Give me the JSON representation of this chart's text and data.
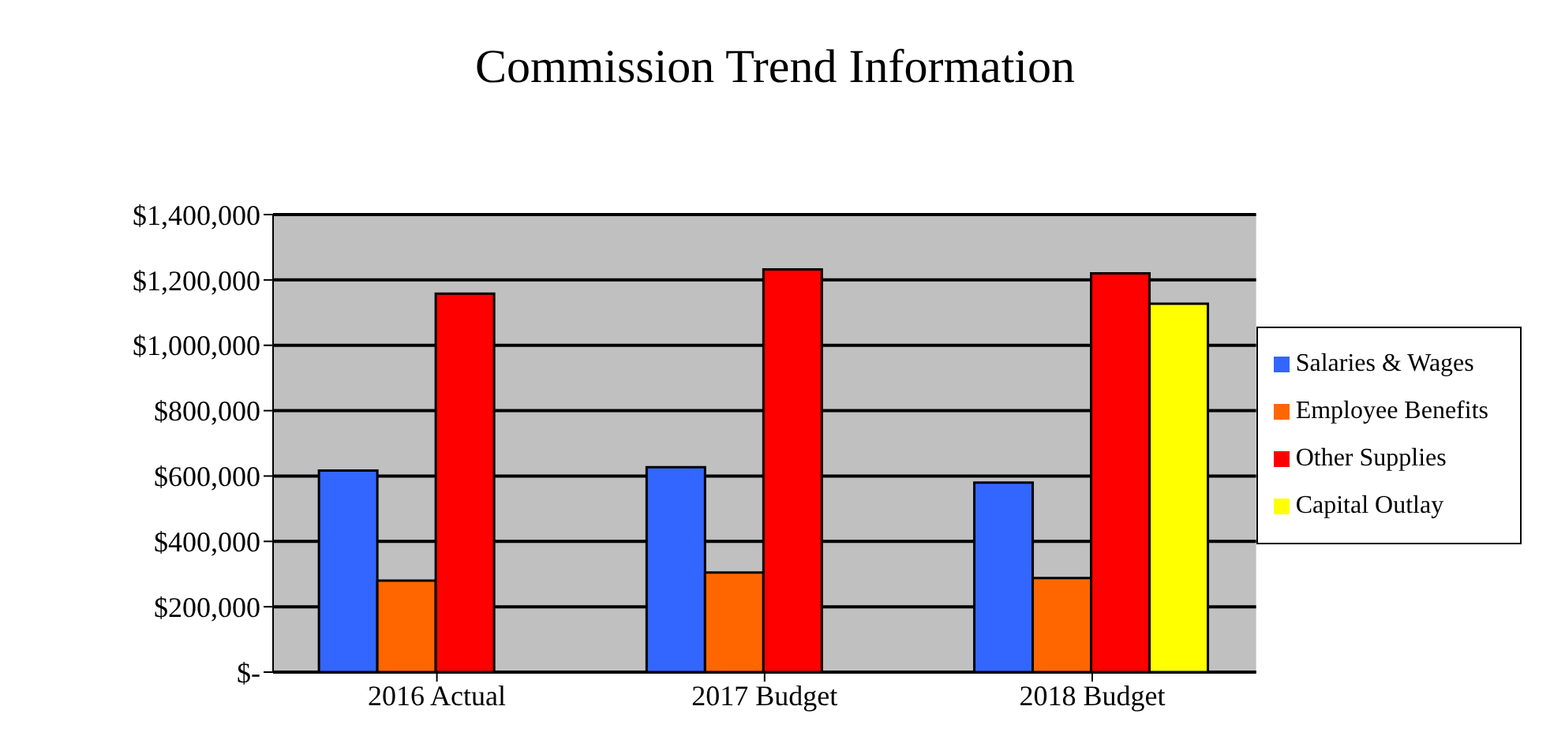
{
  "chart_data": {
    "type": "bar",
    "title": "Commission Trend Information",
    "categories": [
      "2016 Actual",
      "2017 Budget",
      "2018 Budget"
    ],
    "series": [
      {
        "name": "Salaries & Wages",
        "color": "#3366ff",
        "values": [
          617000,
          627000,
          580000
        ]
      },
      {
        "name": "Employee Benefits",
        "color": "#ff6600",
        "values": [
          280000,
          305000,
          288000
        ]
      },
      {
        "name": "Other Supplies",
        "color": "#ff0000",
        "values": [
          1158000,
          1232000,
          1220000
        ]
      },
      {
        "name": "Capital Outlay",
        "color": "#ffff00",
        "values": [
          0,
          0,
          1127000
        ]
      }
    ],
    "ylim": [
      0,
      1400000
    ],
    "yticks": [
      {
        "value": 0,
        "label": "$-"
      },
      {
        "value": 200000,
        "label": "$200,000"
      },
      {
        "value": 400000,
        "label": "$400,000"
      },
      {
        "value": 600000,
        "label": "$600,000"
      },
      {
        "value": 800000,
        "label": "$800,000"
      },
      {
        "value": 1000000,
        "label": "$1,000,000"
      },
      {
        "value": 1200000,
        "label": "$1,200,000"
      },
      {
        "value": 1400000,
        "label": "$1,400,000"
      }
    ],
    "grid": "y",
    "legend": "right"
  }
}
